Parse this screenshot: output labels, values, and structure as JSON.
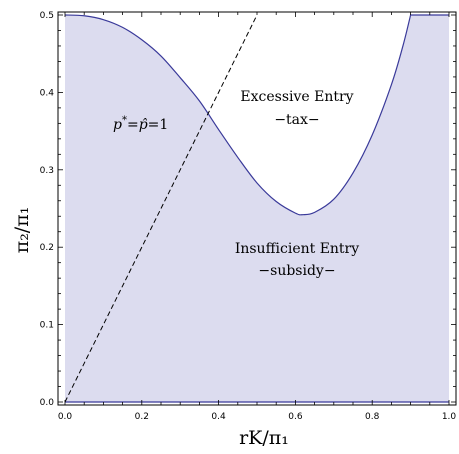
{
  "chart_data": {
    "type": "area",
    "title": "",
    "xlabel": "rK/π₁",
    "ylabel": "π₂/π₁",
    "xlim": [
      0,
      1
    ],
    "ylim": [
      0,
      0.5
    ],
    "xticks": [
      "0.0",
      "0.2",
      "0.4",
      "0.6",
      "0.8",
      "1.0"
    ],
    "yticks": [
      "0.0",
      "0.1",
      "0.2",
      "0.3",
      "0.4",
      "0.5"
    ],
    "grid": false,
    "colors": {
      "fill": "#dcdcef",
      "boundary": "#3a3a9a",
      "line": "#000000"
    },
    "series": [
      {
        "kind": "boundary",
        "x": [
          0,
          0.05,
          0.1,
          0.15,
          0.2,
          0.25,
          0.3,
          0.35,
          0.4,
          0.45,
          0.5,
          0.55,
          0.6,
          0.62,
          0.65,
          0.7,
          0.75,
          0.8,
          0.85,
          0.88,
          0.9,
          0.95,
          1.0
        ],
        "y": [
          0.5,
          0.499,
          0.494,
          0.484,
          0.468,
          0.447,
          0.419,
          0.389,
          0.352,
          0.316,
          0.283,
          0.259,
          0.244,
          0.242,
          0.245,
          0.262,
          0.296,
          0.345,
          0.41,
          0.46,
          0.5,
          0.5,
          0.5
        ]
      },
      {
        "kind": "dashed",
        "x": [
          0,
          0.5
        ],
        "y": [
          0,
          0.5
        ]
      }
    ],
    "annotations": {
      "diag": {
        "p": "p",
        "star": "*",
        "eq": "=",
        "phat": "p̂",
        "rhs": "=1"
      },
      "excessive": {
        "line1": "Excessive Entry",
        "line2": "−tax−"
      },
      "insufficient": {
        "line1": "Insufficient Entry",
        "line2": "−subsidy−"
      }
    }
  }
}
